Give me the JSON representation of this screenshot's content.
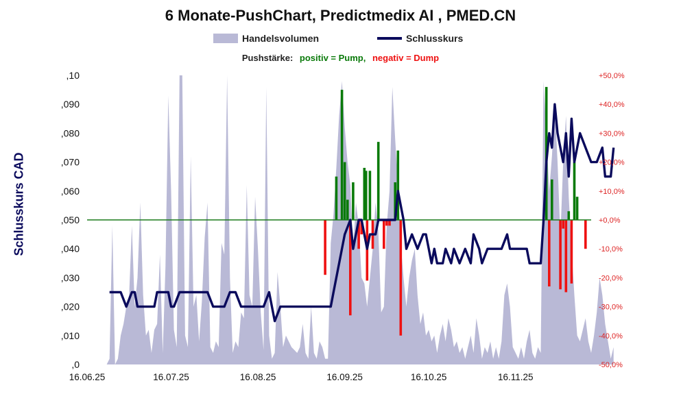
{
  "title": "6 Monate-PushChart, Predictmedix AI , PMED.CN",
  "legend": {
    "volume_label": "Handelsvolumen",
    "price_label": "Schlusskurs"
  },
  "push_legend": {
    "label": "Pushstärke:",
    "positive": "positiv = Pump,",
    "negative": "negativ = Dump"
  },
  "colors": {
    "volume": "#b9b9d6",
    "price": "#0a0a5c",
    "positive": "#0a7a0a",
    "negative": "#ee1111",
    "zero_line": "#1a7a1a",
    "right_axis": "#dd2222"
  },
  "chart_data": {
    "type": "line",
    "title": "6 Monate-PushChart, Predictmedix AI , PMED.CN",
    "ylabel": "Schlusskurs CAD",
    "ylim": [
      0,
      0.1
    ],
    "y2lim": [
      -50,
      50
    ],
    "x_range_days": [
      0,
      180
    ],
    "left_ticks": [
      ",0",
      ",010",
      ",020",
      ",030",
      ",040",
      ",050",
      ",060",
      ",070",
      ",080",
      ",090",
      ",10"
    ],
    "right_ticks": [
      "-50,0%",
      "-40,0%",
      "-30,0%",
      "-20,0%",
      "-10,0%",
      "+0,0%",
      "+10,0%",
      "+20,0%",
      "+30,0%",
      "+40,0%",
      "+50,0%"
    ],
    "x_ticks": [
      {
        "label": "16.06.25",
        "day": 0
      },
      {
        "label": "16.07.25",
        "day": 30
      },
      {
        "label": "16.08.25",
        "day": 61
      },
      {
        "label": "16.09.25",
        "day": 92
      },
      {
        "label": "16.10.25",
        "day": 122
      },
      {
        "label": "16.11.25",
        "day": 153
      }
    ],
    "price_series": {
      "name": "Schlusskurs",
      "points": [
        [
          8,
          0.025
        ],
        [
          10,
          0.025
        ],
        [
          12,
          0.025
        ],
        [
          14,
          0.02
        ],
        [
          16,
          0.025
        ],
        [
          17,
          0.025
        ],
        [
          18,
          0.02
        ],
        [
          20,
          0.02
        ],
        [
          22,
          0.02
        ],
        [
          24,
          0.02
        ],
        [
          25,
          0.025
        ],
        [
          27,
          0.025
        ],
        [
          29,
          0.025
        ],
        [
          30,
          0.02
        ],
        [
          31,
          0.02
        ],
        [
          33,
          0.025
        ],
        [
          35,
          0.025
        ],
        [
          37,
          0.025
        ],
        [
          39,
          0.025
        ],
        [
          41,
          0.025
        ],
        [
          43,
          0.025
        ],
        [
          45,
          0.02
        ],
        [
          47,
          0.02
        ],
        [
          49,
          0.02
        ],
        [
          51,
          0.025
        ],
        [
          53,
          0.025
        ],
        [
          55,
          0.02
        ],
        [
          57,
          0.02
        ],
        [
          59,
          0.02
        ],
        [
          61,
          0.02
        ],
        [
          63,
          0.02
        ],
        [
          65,
          0.025
        ],
        [
          67,
          0.015
        ],
        [
          69,
          0.02
        ],
        [
          71,
          0.02
        ],
        [
          73,
          0.02
        ],
        [
          75,
          0.02
        ],
        [
          77,
          0.02
        ],
        [
          79,
          0.02
        ],
        [
          81,
          0.02
        ],
        [
          83,
          0.02
        ],
        [
          85,
          0.02
        ],
        [
          87,
          0.02
        ],
        [
          88,
          0.025
        ],
        [
          90,
          0.035
        ],
        [
          92,
          0.045
        ],
        [
          94,
          0.05
        ],
        [
          95,
          0.04
        ],
        [
          97,
          0.05
        ],
        [
          98,
          0.05
        ],
        [
          100,
          0.04
        ],
        [
          101,
          0.045
        ],
        [
          103,
          0.045
        ],
        [
          104,
          0.05
        ],
        [
          106,
          0.05
        ],
        [
          108,
          0.05
        ],
        [
          109,
          0.05
        ],
        [
          110,
          0.05
        ],
        [
          111,
          0.06
        ],
        [
          113,
          0.05
        ],
        [
          114,
          0.04
        ],
        [
          116,
          0.045
        ],
        [
          118,
          0.04
        ],
        [
          120,
          0.045
        ],
        [
          121,
          0.045
        ],
        [
          123,
          0.035
        ],
        [
          124,
          0.04
        ],
        [
          125,
          0.035
        ],
        [
          127,
          0.035
        ],
        [
          128,
          0.04
        ],
        [
          130,
          0.035
        ],
        [
          131,
          0.04
        ],
        [
          133,
          0.035
        ],
        [
          135,
          0.04
        ],
        [
          137,
          0.035
        ],
        [
          138,
          0.045
        ],
        [
          140,
          0.04
        ],
        [
          141,
          0.035
        ],
        [
          143,
          0.04
        ],
        [
          145,
          0.04
        ],
        [
          147,
          0.04
        ],
        [
          148,
          0.04
        ],
        [
          150,
          0.045
        ],
        [
          151,
          0.04
        ],
        [
          153,
          0.04
        ],
        [
          155,
          0.04
        ],
        [
          157,
          0.04
        ],
        [
          158,
          0.035
        ],
        [
          160,
          0.035
        ],
        [
          162,
          0.035
        ],
        [
          163,
          0.05
        ],
        [
          164,
          0.07
        ],
        [
          165,
          0.08
        ],
        [
          166,
          0.075
        ],
        [
          167,
          0.09
        ],
        [
          168,
          0.08
        ],
        [
          170,
          0.07
        ],
        [
          171,
          0.08
        ],
        [
          172,
          0.065
        ],
        [
          173,
          0.085
        ],
        [
          174,
          0.07
        ],
        [
          176,
          0.08
        ],
        [
          178,
          0.075
        ],
        [
          180,
          0.07
        ],
        [
          182,
          0.07
        ],
        [
          184,
          0.075
        ],
        [
          185,
          0.065
        ],
        [
          187,
          0.065
        ],
        [
          188,
          0.075
        ]
      ]
    },
    "volume_series": {
      "name": "Handelsvolumen",
      "unit": "fraction of axis height",
      "points": [
        [
          7,
          0
        ],
        [
          8,
          0.02
        ],
        [
          9,
          0.48
        ],
        [
          10,
          0.0
        ],
        [
          11,
          0.02
        ],
        [
          12,
          0.1
        ],
        [
          13,
          0.14
        ],
        [
          14,
          0.2
        ],
        [
          15,
          0.24
        ],
        [
          16,
          0.48
        ],
        [
          17,
          0.2
        ],
        [
          18,
          0.3
        ],
        [
          19,
          0.56
        ],
        [
          20,
          0.24
        ],
        [
          21,
          0.1
        ],
        [
          22,
          0.12
        ],
        [
          23,
          0.04
        ],
        [
          24,
          0.12
        ],
        [
          25,
          0.14
        ],
        [
          26,
          0.38
        ],
        [
          27,
          0.04
        ],
        [
          28,
          0.34
        ],
        [
          29,
          0.93
        ],
        [
          30,
          0.6
        ],
        [
          31,
          0.12
        ],
        [
          32,
          0.06
        ],
        [
          33,
          1.0
        ],
        [
          34,
          1.0
        ],
        [
          35,
          0.1
        ],
        [
          36,
          0.06
        ],
        [
          37,
          0.72
        ],
        [
          38,
          0.2
        ],
        [
          39,
          0.24
        ],
        [
          40,
          0.08
        ],
        [
          41,
          0.22
        ],
        [
          42,
          0.44
        ],
        [
          43,
          0.56
        ],
        [
          44,
          0.06
        ],
        [
          45,
          0.04
        ],
        [
          46,
          0.08
        ],
        [
          47,
          0.06
        ],
        [
          48,
          0.42
        ],
        [
          49,
          0.38
        ],
        [
          50,
          1.0
        ],
        [
          51,
          0.3
        ],
        [
          52,
          0.04
        ],
        [
          53,
          0.08
        ],
        [
          54,
          0.06
        ],
        [
          55,
          0.18
        ],
        [
          56,
          0.16
        ],
        [
          57,
          0.62
        ],
        [
          58,
          0.24
        ],
        [
          59,
          0.2
        ],
        [
          60,
          0.58
        ],
        [
          61,
          0.4
        ],
        [
          62,
          0.18
        ],
        [
          63,
          0.05
        ],
        [
          64,
          0.96
        ],
        [
          65,
          0.1
        ],
        [
          66,
          0.02
        ],
        [
          67,
          0.04
        ],
        [
          68,
          0.32
        ],
        [
          69,
          0.2
        ],
        [
          70,
          0.06
        ],
        [
          71,
          0.1
        ],
        [
          72,
          0.08
        ],
        [
          73,
          0.06
        ],
        [
          74,
          0.05
        ],
        [
          75,
          0.04
        ],
        [
          76,
          0.06
        ],
        [
          77,
          0.14
        ],
        [
          78,
          0.04
        ],
        [
          79,
          0.02
        ],
        [
          80,
          0.2
        ],
        [
          81,
          0.04
        ],
        [
          82,
          0.02
        ],
        [
          83,
          0.08
        ],
        [
          84,
          0.06
        ],
        [
          85,
          0.02
        ],
        [
          86,
          0.02
        ],
        [
          87,
          0.42
        ],
        [
          88,
          0.52
        ],
        [
          89,
          0.68
        ],
        [
          90,
          0.86
        ],
        [
          91,
          0.98
        ],
        [
          92,
          0.82
        ],
        [
          93,
          0.7
        ],
        [
          94,
          0.62
        ],
        [
          95,
          0.4
        ],
        [
          96,
          0.56
        ],
        [
          97,
          0.48
        ],
        [
          98,
          0.3
        ],
        [
          99,
          0.28
        ],
        [
          100,
          0.2
        ],
        [
          101,
          0.3
        ],
        [
          102,
          0.4
        ],
        [
          103,
          0.56
        ],
        [
          104,
          0.46
        ],
        [
          105,
          0.18
        ],
        [
          106,
          0.2
        ],
        [
          107,
          0.48
        ],
        [
          108,
          0.6
        ],
        [
          109,
          0.96
        ],
        [
          110,
          0.78
        ],
        [
          111,
          0.62
        ],
        [
          112,
          0.42
        ],
        [
          113,
          0.3
        ],
        [
          114,
          0.2
        ],
        [
          115,
          0.3
        ],
        [
          116,
          0.36
        ],
        [
          117,
          0.4
        ],
        [
          118,
          0.24
        ],
        [
          119,
          0.14
        ],
        [
          120,
          0.18
        ],
        [
          121,
          0.1
        ],
        [
          122,
          0.12
        ],
        [
          123,
          0.08
        ],
        [
          124,
          0.1
        ],
        [
          125,
          0.04
        ],
        [
          126,
          0.1
        ],
        [
          127,
          0.14
        ],
        [
          128,
          0.08
        ],
        [
          129,
          0.16
        ],
        [
          130,
          0.12
        ],
        [
          131,
          0.06
        ],
        [
          132,
          0.08
        ],
        [
          133,
          0.04
        ],
        [
          134,
          0.06
        ],
        [
          135,
          0.02
        ],
        [
          136,
          0.06
        ],
        [
          137,
          0.1
        ],
        [
          138,
          0.04
        ],
        [
          139,
          0.16
        ],
        [
          140,
          0.1
        ],
        [
          141,
          0.02
        ],
        [
          142,
          0.06
        ],
        [
          143,
          0.04
        ],
        [
          144,
          0.08
        ],
        [
          145,
          0.02
        ],
        [
          146,
          0.06
        ],
        [
          147,
          0.02
        ],
        [
          148,
          0.08
        ],
        [
          149,
          0.24
        ],
        [
          150,
          0.28
        ],
        [
          151,
          0.2
        ],
        [
          152,
          0.06
        ],
        [
          153,
          0.04
        ],
        [
          154,
          0.02
        ],
        [
          155,
          0.06
        ],
        [
          156,
          0.02
        ],
        [
          157,
          0.08
        ],
        [
          158,
          0.12
        ],
        [
          159,
          0.04
        ],
        [
          160,
          0.02
        ],
        [
          161,
          0.06
        ],
        [
          162,
          0.04
        ],
        [
          163,
          0.98
        ],
        [
          164,
          0.8
        ],
        [
          165,
          0.6
        ],
        [
          166,
          0.72
        ],
        [
          167,
          0.9
        ],
        [
          168,
          0.7
        ],
        [
          169,
          0.44
        ],
        [
          170,
          0.7
        ],
        [
          171,
          0.86
        ],
        [
          172,
          0.58
        ],
        [
          173,
          0.4
        ],
        [
          174,
          0.24
        ],
        [
          175,
          0.1
        ],
        [
          176,
          0.08
        ],
        [
          177,
          0.12
        ],
        [
          178,
          0.16
        ],
        [
          179,
          0.08
        ],
        [
          180,
          0.04
        ],
        [
          181,
          0.1
        ],
        [
          182,
          0.18
        ],
        [
          183,
          0.3
        ],
        [
          184,
          0.24
        ],
        [
          185,
          0.14
        ],
        [
          186,
          0.08
        ],
        [
          187,
          0.02
        ],
        [
          188,
          0.06
        ]
      ]
    },
    "push_series": {
      "name": "Pushstärke",
      "unit": "percent",
      "points": [
        [
          85,
          -19
        ],
        [
          89,
          15
        ],
        [
          91,
          45
        ],
        [
          92,
          20
        ],
        [
          93,
          7
        ],
        [
          94,
          -33
        ],
        [
          95,
          13
        ],
        [
          97,
          -10
        ],
        [
          98,
          -5
        ],
        [
          99,
          18
        ],
        [
          99.6,
          17
        ],
        [
          100,
          -21
        ],
        [
          101,
          17
        ],
        [
          102,
          -10
        ],
        [
          104,
          27
        ],
        [
          106,
          -10
        ],
        [
          107,
          -2
        ],
        [
          108,
          -2
        ],
        [
          110,
          13
        ],
        [
          111,
          24
        ],
        [
          112,
          -40
        ],
        [
          164,
          46
        ],
        [
          165,
          -23
        ],
        [
          166,
          14
        ],
        [
          169,
          -24
        ],
        [
          170,
          -3
        ],
        [
          171,
          -25
        ],
        [
          172,
          3
        ],
        [
          173,
          -22
        ],
        [
          174,
          20
        ],
        [
          175,
          8
        ],
        [
          178,
          -10
        ]
      ]
    }
  }
}
